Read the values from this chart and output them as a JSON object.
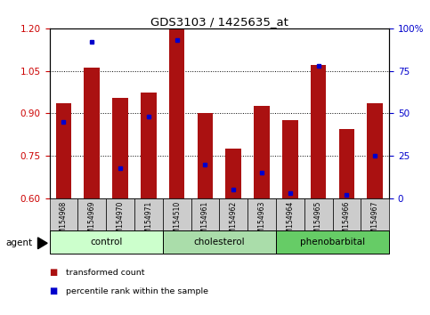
{
  "title": "GDS3103 / 1425635_at",
  "samples": [
    "GSM154968",
    "GSM154969",
    "GSM154970",
    "GSM154971",
    "GSM154510",
    "GSM154961",
    "GSM154962",
    "GSM154963",
    "GSM154964",
    "GSM154965",
    "GSM154966",
    "GSM154967"
  ],
  "red_values": [
    0.935,
    1.06,
    0.955,
    0.975,
    1.2,
    0.9,
    0.775,
    0.925,
    0.875,
    1.07,
    0.845,
    0.935
  ],
  "blue_values_pct": [
    45,
    92,
    18,
    48,
    93,
    20,
    5,
    15,
    3,
    78,
    2,
    25
  ],
  "ylim_left": [
    0.6,
    1.2
  ],
  "ylim_right": [
    0,
    100
  ],
  "yticks_left": [
    0.6,
    0.75,
    0.9,
    1.05,
    1.2
  ],
  "yticks_right": [
    0,
    25,
    50,
    75,
    100
  ],
  "ytick_labels_right": [
    "0",
    "25",
    "50",
    "75",
    "100%"
  ],
  "groups": [
    {
      "label": "control",
      "indices": [
        0,
        1,
        2,
        3
      ]
    },
    {
      "label": "cholesterol",
      "indices": [
        4,
        5,
        6,
        7
      ]
    },
    {
      "label": "phenobarbital",
      "indices": [
        8,
        9,
        10,
        11
      ]
    }
  ],
  "group_colors": [
    "#ccffcc",
    "#aaddaa",
    "#66cc66"
  ],
  "bar_color": "#aa1111",
  "dot_color": "#0000cc",
  "bg_color": "#ffffff",
  "tick_color_left": "#cc0000",
  "tick_color_right": "#0000cc",
  "legend_red_label": "transformed count",
  "legend_blue_label": "percentile rank within the sample",
  "agent_label": "agent",
  "sample_bg": "#cccccc"
}
